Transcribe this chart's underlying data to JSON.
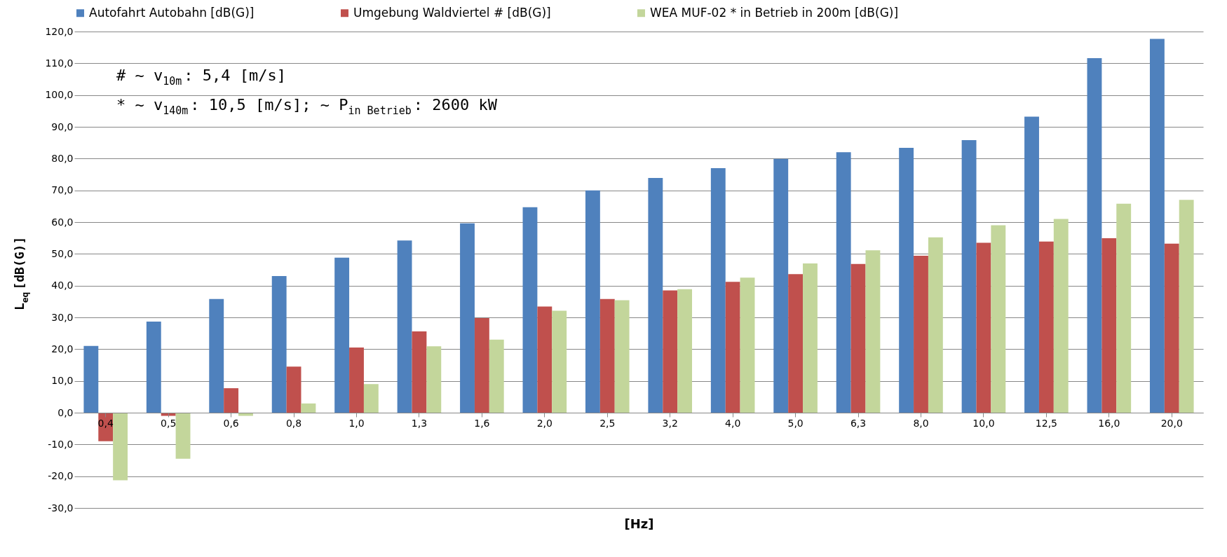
{
  "chart_data": {
    "type": "bar",
    "xlabel": "[Hz]",
    "ylabel": "L$_{eq}$ [dB(G)]",
    "categories": [
      "0,4",
      "0,5",
      "0,6",
      "0,8",
      "1,0",
      "1,3",
      "1,6",
      "2,0",
      "2,5",
      "3,2",
      "4,0",
      "5,0",
      "6,3",
      "8,0",
      "10,0",
      "12,5",
      "16,0",
      "20,0"
    ],
    "series": [
      {
        "name": "Autofahrt Autobahn [dB(G)]",
        "color": "#4f81bd",
        "values": [
          21,
          28.7,
          35.8,
          43,
          48.8,
          54.2,
          59.6,
          64.7,
          70,
          73.9,
          77,
          79.9,
          82,
          83.4,
          85.8,
          93.2,
          111.6,
          117.7
        ]
      },
      {
        "name": "Umgebung Waldviertel # [dB(G)]",
        "color": "#c0504d",
        "values": [
          -9,
          -1,
          7.7,
          14.5,
          20.5,
          25.6,
          29.8,
          33.4,
          35.8,
          38.5,
          41.2,
          43.6,
          46.8,
          49.4,
          53.5,
          53.9,
          54.9,
          53.2
        ]
      },
      {
        "name": "WEA MUF-02 * in Betrieb  in 200m [dB(G)]",
        "color": "#c3d69b",
        "values": [
          -21.3,
          -14.5,
          -1,
          2.9,
          9,
          20.9,
          23,
          32.1,
          35.4,
          38.9,
          42.5,
          47,
          51.1,
          55.2,
          59,
          61,
          65.8,
          67
        ]
      }
    ],
    "ylim": [
      -30,
      120
    ],
    "yticks": [
      {
        "value": -30,
        "label": "-30,0"
      },
      {
        "value": -20,
        "label": "-20,0"
      },
      {
        "value": -10,
        "label": "-10,0"
      },
      {
        "value": 0,
        "label": "0,0"
      },
      {
        "value": 10,
        "label": "10,0"
      },
      {
        "value": 20,
        "label": "20,0"
      },
      {
        "value": 30,
        "label": "30,0"
      },
      {
        "value": 40,
        "label": "40,0"
      },
      {
        "value": 50,
        "label": "50,0"
      },
      {
        "value": 60,
        "label": "60,0"
      },
      {
        "value": 70,
        "label": "70,0"
      },
      {
        "value": 80,
        "label": "80,0"
      },
      {
        "value": 90,
        "label": "90,0"
      },
      {
        "value": 100,
        "label": "100,0"
      },
      {
        "value": 110,
        "label": "110,0"
      },
      {
        "value": 120,
        "label": "120,0"
      }
    ],
    "grid": "y",
    "legend": "top",
    "annotations": [
      "# ~ v$_{10m}$: 5,4 [m/s]",
      "* ~ v$_{140m}$: 10,5 [m/s]; ~ P$_{in Betrieb}$: 2600 kW"
    ]
  }
}
